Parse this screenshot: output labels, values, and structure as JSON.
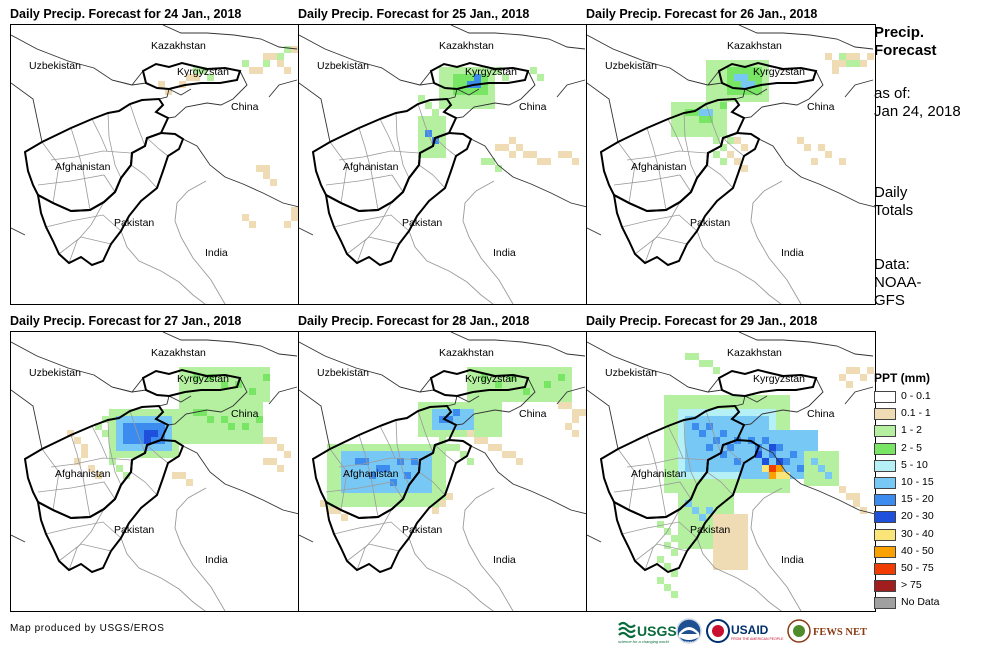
{
  "panels": [
    {
      "title": "Daily Precip. Forecast for 24 Jan., 2018",
      "day": 24
    },
    {
      "title": "Daily Precip. Forecast for 25 Jan., 2018",
      "day": 25
    },
    {
      "title": "Daily Precip. Forecast for 26 Jan., 2018",
      "day": 26
    },
    {
      "title": "Daily Precip. Forecast for 27 Jan., 2018",
      "day": 27
    },
    {
      "title": "Daily Precip. Forecast for 28 Jan., 2018",
      "day": 28
    },
    {
      "title": "Daily Precip. Forecast for 29 Jan., 2018",
      "day": 29
    }
  ],
  "map_labels": {
    "kazakhstan": "Kazakhstan",
    "uzbekistan": "Uzbekistan",
    "kyrgyzstan": "Kyrgyzstan",
    "china": "China",
    "afghanistan": "Afghanistan",
    "pakistan": "Pakistan",
    "india": "India"
  },
  "side": {
    "title_line1": "Precip.",
    "title_line2": "Forecast",
    "asof_line1": "as of:",
    "asof_line2": "Jan 24, 2018",
    "daily_line1": "Daily",
    "daily_line2": "Totals",
    "data_line1": "Data:",
    "data_line2": "NOAA-",
    "data_line3": "GFS"
  },
  "legend": {
    "title": "PPT (mm)",
    "items": [
      {
        "label": "0 - 0.1",
        "color": "#ffffff"
      },
      {
        "label": "0.1 - 1",
        "color": "#f0dcb4"
      },
      {
        "label": "1 - 2",
        "color": "#b4f0a0"
      },
      {
        "label": "2 - 5",
        "color": "#78e664"
      },
      {
        "label": "5 - 10",
        "color": "#b4f0f5"
      },
      {
        "label": "10 - 15",
        "color": "#78c8f5"
      },
      {
        "label": "15 - 20",
        "color": "#3c8cf0"
      },
      {
        "label": "20 - 30",
        "color": "#1e50dc"
      },
      {
        "label": "30 - 40",
        "color": "#fae678"
      },
      {
        "label": "40 - 50",
        "color": "#faa000"
      },
      {
        "label": "50 - 75",
        "color": "#f03c00"
      },
      {
        "label": "> 75",
        "color": "#a01e1e"
      },
      {
        "label": "No Data",
        "color": "#a0a0a0"
      }
    ]
  },
  "credit": "Map produced by USGS/EROS",
  "logos": {
    "usgs": "USGS",
    "usgs_tagline": "science for a changing world",
    "noaa": "NOAA",
    "usaid": "USAID",
    "usaid_tagline": "FROM THE AMERICAN PEOPLE",
    "fewsnet": "FEWS NET"
  }
}
